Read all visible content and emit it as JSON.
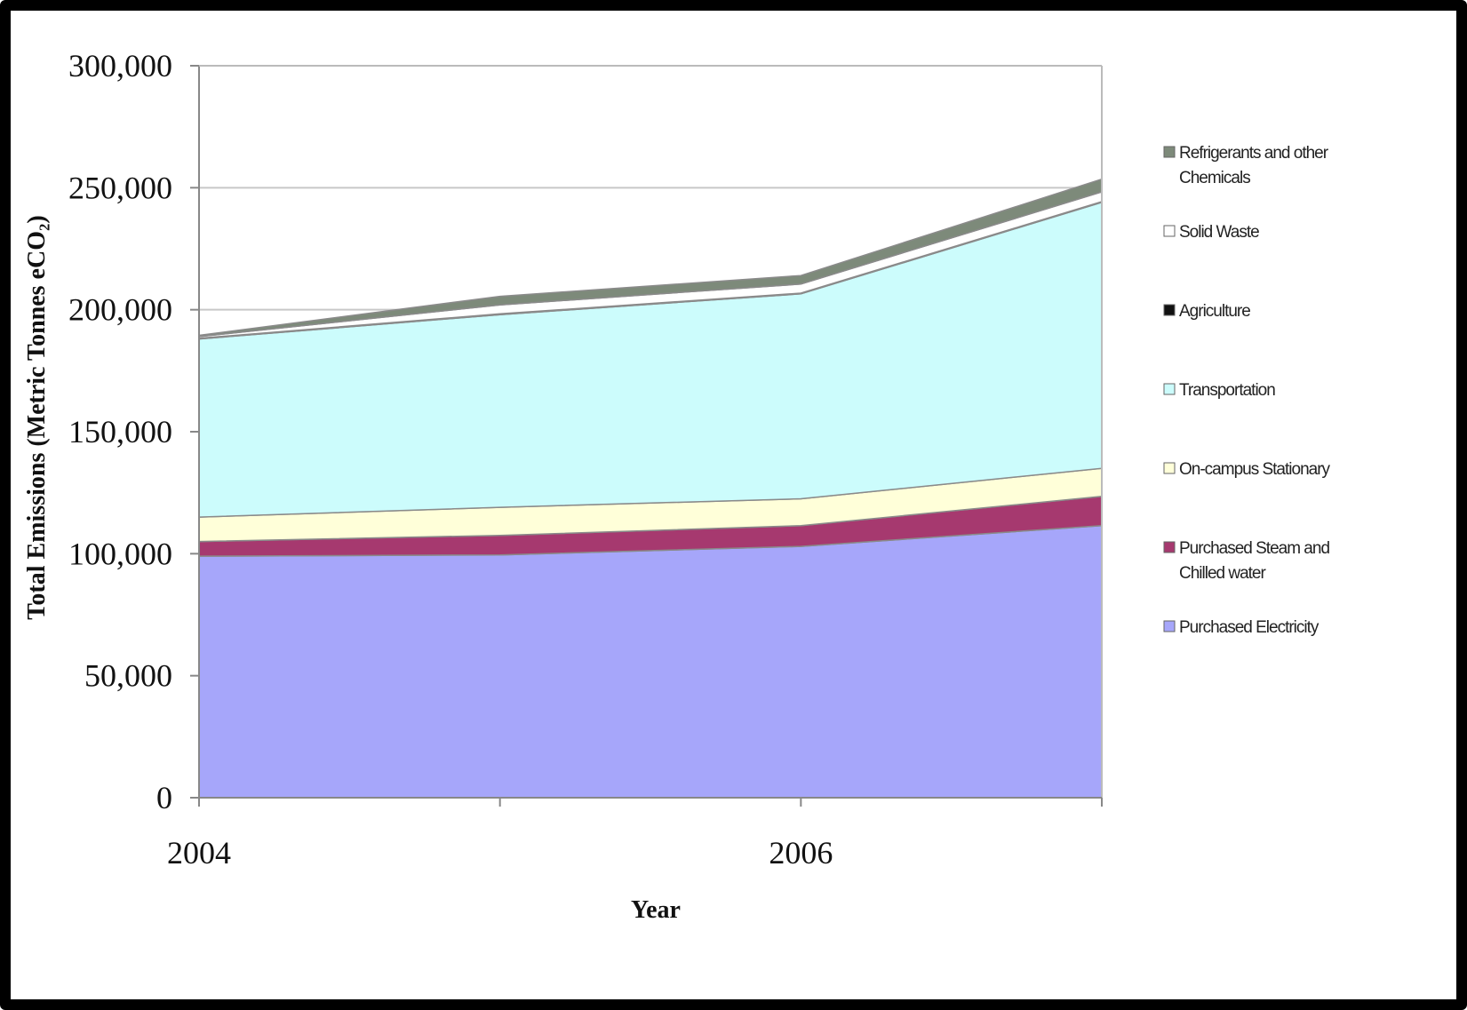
{
  "chart_data": {
    "type": "area",
    "stacked": true,
    "x": [
      2004,
      2005,
      2006,
      2007
    ],
    "x_tick_labels": [
      "2004",
      "",
      "2006",
      ""
    ],
    "xlabel": "Year",
    "ylabel": "Total Emissions (Metric Tonnes eCO₂)",
    "ylim": [
      0,
      300000
    ],
    "y_ticks": [
      0,
      50000,
      100000,
      150000,
      200000,
      250000,
      300000
    ],
    "y_tick_labels": [
      "0",
      "50,000",
      "100,000",
      "150,000",
      "200,000",
      "250,000",
      "300,000"
    ],
    "grid": "horizontal",
    "legend_position": "right",
    "series": [
      {
        "name": "Purchased Electricity",
        "color": "#a6a6fa",
        "values": [
          99000,
          99500,
          103000,
          111500
        ]
      },
      {
        "name": "Purchased Steam and Chilled water",
        "color": "#a6396f",
        "values": [
          6000,
          8000,
          8500,
          12000
        ]
      },
      {
        "name": "On-campus Stationary",
        "color": "#ffffd9",
        "values": [
          10000,
          11500,
          11000,
          11500
        ]
      },
      {
        "name": "Transportation",
        "color": "#ccfcfc",
        "values": [
          73000,
          79000,
          84000,
          109000
        ]
      },
      {
        "name": "Agriculture",
        "color": "#111111",
        "values": [
          300,
          300,
          300,
          300
        ]
      },
      {
        "name": "Solid Waste",
        "color": "#ffffff",
        "values": [
          700,
          3700,
          3700,
          4000
        ]
      },
      {
        "name": "Refrigerants and other Chemicals",
        "color": "#7d8a7a",
        "values": [
          500,
          3500,
          3500,
          5200
        ]
      }
    ]
  }
}
